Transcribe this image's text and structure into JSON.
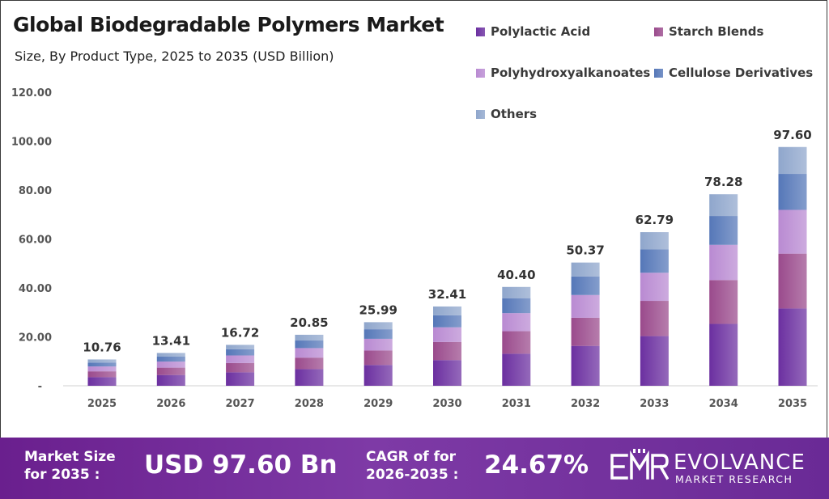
{
  "chart_data": {
    "type": "bar",
    "stacked": true,
    "title": "Global Biodegradable Polymers Market",
    "subtitle": "Size, By Product Type, 2025 to 2035 (USD Billion)",
    "xlabel": "",
    "ylabel": "",
    "ylim": [
      0,
      120
    ],
    "y_ticks": [
      "-",
      "20.00",
      "40.00",
      "60.00",
      "80.00",
      "100.00",
      "120.00"
    ],
    "grid": false,
    "legend_position": "top-right",
    "categories": [
      "2025",
      "2026",
      "2027",
      "2028",
      "2029",
      "2030",
      "2031",
      "2032",
      "2033",
      "2034",
      "2035"
    ],
    "totals": [
      "10.76",
      "13.41",
      "16.72",
      "20.85",
      "25.99",
      "32.41",
      "40.40",
      "50.37",
      "62.79",
      "78.28",
      "97.60"
    ],
    "series": [
      {
        "name": "Polylactic Acid",
        "color": "#6b2fa0",
        "values": [
          3.5,
          4.4,
          5.5,
          6.8,
          8.5,
          10.5,
          13.1,
          16.3,
          20.3,
          25.3,
          31.6
        ]
      },
      {
        "name": "Starch Blends",
        "color": "#9a4a8c",
        "values": [
          2.4,
          3.0,
          3.8,
          4.7,
          5.9,
          7.4,
          9.2,
          11.5,
          14.4,
          17.9,
          22.4
        ]
      },
      {
        "name": "Polyhydroxyalkanoates",
        "color": "#b98ad2",
        "values": [
          2.0,
          2.5,
          3.1,
          3.9,
          4.8,
          6.0,
          7.4,
          9.3,
          11.5,
          14.4,
          17.9
        ]
      },
      {
        "name": "Cellulose Derivatives",
        "color": "#5577b8",
        "values": [
          1.6,
          2.0,
          2.5,
          3.1,
          3.9,
          4.9,
          6.1,
          7.6,
          9.5,
          11.8,
          14.7
        ]
      },
      {
        "name": "Others",
        "color": "#8fa6cc",
        "values": [
          1.26,
          1.51,
          1.82,
          2.35,
          2.89,
          3.61,
          4.6,
          5.67,
          7.09,
          8.88,
          11.0
        ]
      }
    ]
  },
  "footer": {
    "market_size_label_1": "Market Size",
    "market_size_label_2": "for 2035 :",
    "market_size_value": "USD 97.60 Bn",
    "cagr_label_1": "CAGR of for",
    "cagr_label_2": "2026-2035 :",
    "cagr_value": "24.67%",
    "brand_name": "EVOLVANCE",
    "brand_sub": "MARKET RESEARCH",
    "brand_mark": "EMR"
  }
}
